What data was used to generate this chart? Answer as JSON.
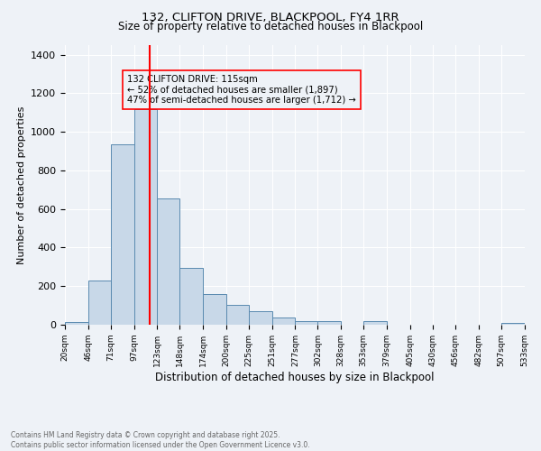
{
  "title_line1": "132, CLIFTON DRIVE, BLACKPOOL, FY4 1RR",
  "title_line2": "Size of property relative to detached houses in Blackpool",
  "xlabel": "Distribution of detached houses by size in Blackpool",
  "ylabel": "Number of detached properties",
  "bar_color": "#c8d8e8",
  "bar_edge_color": "#5a8ab0",
  "bins": [
    20,
    46,
    71,
    97,
    123,
    148,
    174,
    200,
    225,
    251,
    277,
    302,
    328,
    353,
    379,
    405,
    430,
    456,
    482,
    507,
    533
  ],
  "heights": [
    15,
    228,
    935,
    1120,
    655,
    295,
    160,
    105,
    70,
    38,
    20,
    20,
    0,
    20,
    0,
    0,
    0,
    0,
    0,
    10
  ],
  "tick_labels": [
    "20sqm",
    "46sqm",
    "71sqm",
    "97sqm",
    "123sqm",
    "148sqm",
    "174sqm",
    "200sqm",
    "225sqm",
    "251sqm",
    "277sqm",
    "302sqm",
    "328sqm",
    "353sqm",
    "379sqm",
    "405sqm",
    "430sqm",
    "456sqm",
    "482sqm",
    "507sqm",
    "533sqm"
  ],
  "ylim": [
    0,
    1450
  ],
  "yticks": [
    0,
    200,
    400,
    600,
    800,
    1000,
    1200,
    1400
  ],
  "vline_x": 115,
  "annotation_text": "132 CLIFTON DRIVE: 115sqm\n← 52% of detached houses are smaller (1,897)\n47% of semi-detached houses are larger (1,712) →",
  "footnote": "Contains HM Land Registry data © Crown copyright and database right 2025.\nContains public sector information licensed under the Open Government Licence v3.0.",
  "bg_color": "#eef2f7",
  "grid_color": "#ffffff"
}
